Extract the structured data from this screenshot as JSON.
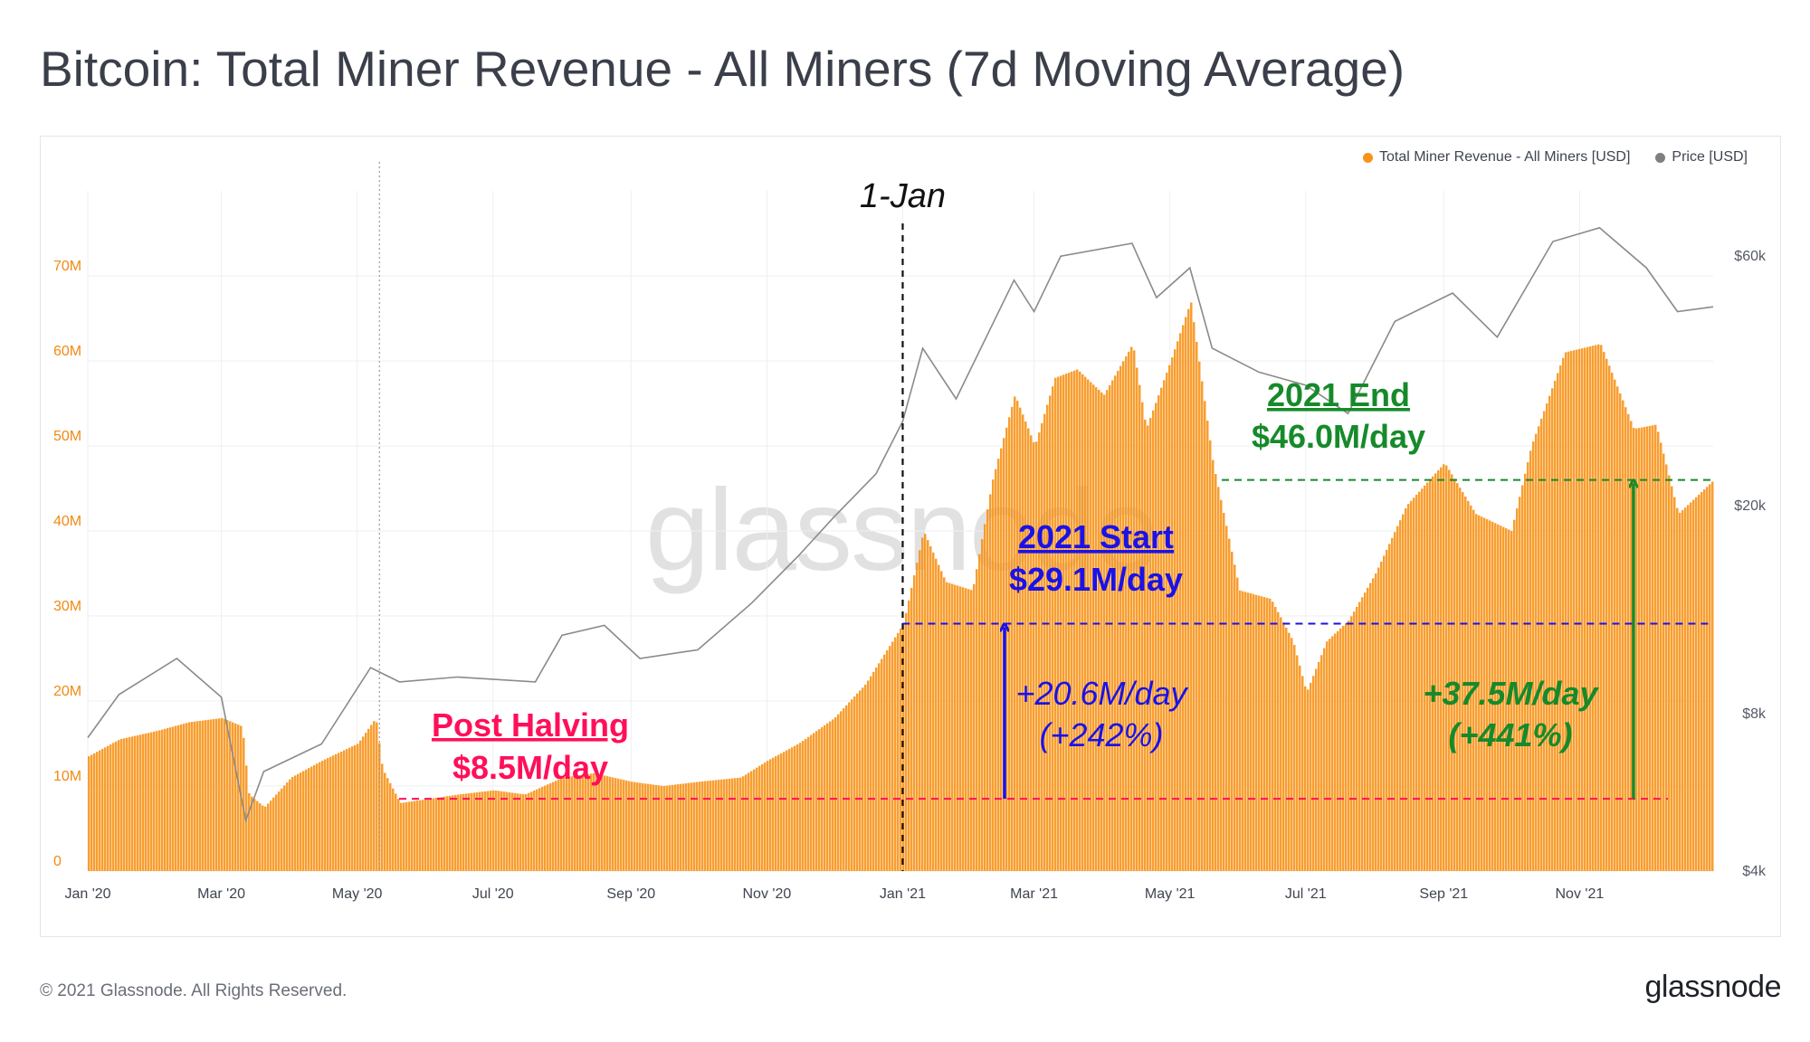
{
  "page": {
    "title": "Bitcoin: Total Miner Revenue - All Miners (7d Moving Average)",
    "copyright": "© 2021 Glassnode. All Rights Reserved.",
    "logo": "glassnode",
    "watermark": "glassnode"
  },
  "legend": {
    "items": [
      {
        "label": "Total Miner Revenue - All Miners [USD]",
        "color": "#f7931a"
      },
      {
        "label": "Price [USD]",
        "color": "#7f7f7f"
      }
    ]
  },
  "chart_data": {
    "type": "area",
    "x_range": [
      "2020-01-01",
      "2021-12-31"
    ],
    "x_ticks": [
      {
        "date": "2020-01-01",
        "label": "Jan '20"
      },
      {
        "date": "2020-03-01",
        "label": "Mar '20"
      },
      {
        "date": "2020-05-01",
        "label": "May '20"
      },
      {
        "date": "2020-07-01",
        "label": "Jul '20"
      },
      {
        "date": "2020-09-01",
        "label": "Sep '20"
      },
      {
        "date": "2020-11-01",
        "label": "Nov '20"
      },
      {
        "date": "2021-01-01",
        "label": "Jan '21"
      },
      {
        "date": "2021-03-01",
        "label": "Mar '21"
      },
      {
        "date": "2021-05-01",
        "label": "May '21"
      },
      {
        "date": "2021-07-01",
        "label": "Jul '21"
      },
      {
        "date": "2021-09-01",
        "label": "Sep '21"
      },
      {
        "date": "2021-11-01",
        "label": "Nov '21"
      }
    ],
    "y_left": {
      "scale": "linear",
      "ylim": [
        0,
        80000000
      ],
      "ticks": [
        {
          "value": 0,
          "label": "0"
        },
        {
          "value": 10000000,
          "label": "10M"
        },
        {
          "value": 20000000,
          "label": "20M"
        },
        {
          "value": 30000000,
          "label": "30M"
        },
        {
          "value": 40000000,
          "label": "40M"
        },
        {
          "value": 50000000,
          "label": "50M"
        },
        {
          "value": 60000000,
          "label": "60M"
        },
        {
          "value": 70000000,
          "label": "70M"
        }
      ]
    },
    "y_right": {
      "scale": "log",
      "ylim": [
        4000,
        80000
      ],
      "ticks": [
        {
          "value": 4000,
          "label": "$4k"
        },
        {
          "value": 8000,
          "label": "$8k"
        },
        {
          "value": 20000,
          "label": "$20k"
        },
        {
          "value": 60000,
          "label": "$60k"
        }
      ]
    },
    "grid": true,
    "legend_position": "top-right",
    "series": [
      {
        "name": "Total Miner Revenue - All Miners [USD]",
        "type": "area",
        "axis": "left",
        "color": "#f7931a",
        "points": [
          [
            "2020-01-01",
            13500000
          ],
          [
            "2020-01-15",
            15500000
          ],
          [
            "2020-02-01",
            16500000
          ],
          [
            "2020-02-15",
            17500000
          ],
          [
            "2020-03-01",
            18000000
          ],
          [
            "2020-03-10",
            17000000
          ],
          [
            "2020-03-13",
            9000000
          ],
          [
            "2020-03-20",
            7500000
          ],
          [
            "2020-04-01",
            11000000
          ],
          [
            "2020-04-15",
            13000000
          ],
          [
            "2020-05-01",
            15000000
          ],
          [
            "2020-05-09",
            18000000
          ],
          [
            "2020-05-12",
            12000000
          ],
          [
            "2020-05-20",
            8000000
          ],
          [
            "2020-06-15",
            9000000
          ],
          [
            "2020-07-01",
            9500000
          ],
          [
            "2020-07-15",
            9000000
          ],
          [
            "2020-08-01",
            11000000
          ],
          [
            "2020-08-15",
            11500000
          ],
          [
            "2020-09-01",
            10500000
          ],
          [
            "2020-09-15",
            10000000
          ],
          [
            "2020-10-01",
            10500000
          ],
          [
            "2020-10-20",
            11000000
          ],
          [
            "2020-11-01",
            13000000
          ],
          [
            "2020-11-15",
            15000000
          ],
          [
            "2020-12-01",
            18000000
          ],
          [
            "2020-12-15",
            22000000
          ],
          [
            "2021-01-01",
            29100000
          ],
          [
            "2021-01-10",
            40000000
          ],
          [
            "2021-01-20",
            34000000
          ],
          [
            "2021-02-01",
            33000000
          ],
          [
            "2021-02-10",
            46000000
          ],
          [
            "2021-02-20",
            56000000
          ],
          [
            "2021-03-01",
            50000000
          ],
          [
            "2021-03-10",
            58000000
          ],
          [
            "2021-03-20",
            59000000
          ],
          [
            "2021-04-01",
            56000000
          ],
          [
            "2021-04-14",
            62000000
          ],
          [
            "2021-04-20",
            52000000
          ],
          [
            "2021-05-01",
            60000000
          ],
          [
            "2021-05-10",
            67000000
          ],
          [
            "2021-05-20",
            48000000
          ],
          [
            "2021-06-01",
            33000000
          ],
          [
            "2021-06-15",
            32000000
          ],
          [
            "2021-06-25",
            27000000
          ],
          [
            "2021-07-01",
            21000000
          ],
          [
            "2021-07-10",
            27000000
          ],
          [
            "2021-07-20",
            29500000
          ],
          [
            "2021-08-01",
            35000000
          ],
          [
            "2021-08-15",
            43000000
          ],
          [
            "2021-09-01",
            48000000
          ],
          [
            "2021-09-15",
            42000000
          ],
          [
            "2021-10-01",
            40000000
          ],
          [
            "2021-10-10",
            50000000
          ],
          [
            "2021-10-25",
            61000000
          ],
          [
            "2021-11-10",
            62000000
          ],
          [
            "2021-11-25",
            52000000
          ],
          [
            "2021-12-05",
            52500000
          ],
          [
            "2021-12-15",
            42000000
          ],
          [
            "2021-12-31",
            46000000
          ]
        ]
      },
      {
        "name": "Price [USD]",
        "type": "line",
        "axis": "right",
        "color": "#8a8a8a",
        "points": [
          [
            "2020-01-01",
            7200
          ],
          [
            "2020-01-15",
            8700
          ],
          [
            "2020-02-10",
            10200
          ],
          [
            "2020-03-01",
            8600
          ],
          [
            "2020-03-12",
            5000
          ],
          [
            "2020-03-20",
            6200
          ],
          [
            "2020-04-15",
            7000
          ],
          [
            "2020-05-07",
            9800
          ],
          [
            "2020-05-20",
            9200
          ],
          [
            "2020-06-15",
            9400
          ],
          [
            "2020-07-20",
            9200
          ],
          [
            "2020-08-01",
            11300
          ],
          [
            "2020-08-20",
            11800
          ],
          [
            "2020-09-05",
            10200
          ],
          [
            "2020-10-01",
            10600
          ],
          [
            "2020-10-25",
            13000
          ],
          [
            "2020-11-15",
            16000
          ],
          [
            "2020-12-01",
            19000
          ],
          [
            "2020-12-20",
            23000
          ],
          [
            "2021-01-01",
            29000
          ],
          [
            "2021-01-10",
            40000
          ],
          [
            "2021-01-25",
            32000
          ],
          [
            "2021-02-20",
            54000
          ],
          [
            "2021-03-01",
            47000
          ],
          [
            "2021-03-13",
            60000
          ],
          [
            "2021-04-14",
            63500
          ],
          [
            "2021-04-25",
            50000
          ],
          [
            "2021-05-10",
            57000
          ],
          [
            "2021-05-20",
            40000
          ],
          [
            "2021-06-10",
            36000
          ],
          [
            "2021-07-01",
            34000
          ],
          [
            "2021-07-20",
            30000
          ],
          [
            "2021-08-10",
            45000
          ],
          [
            "2021-09-05",
            51000
          ],
          [
            "2021-09-25",
            42000
          ],
          [
            "2021-10-20",
            64000
          ],
          [
            "2021-11-10",
            68000
          ],
          [
            "2021-12-01",
            57000
          ],
          [
            "2021-12-15",
            47000
          ],
          [
            "2021-12-31",
            48000
          ]
        ]
      }
    ],
    "annotations": {
      "jan_marker": {
        "date": "2021-01-01",
        "label": "1-Jan"
      },
      "halving_marker": {
        "date": "2020-05-11"
      },
      "post_halving": {
        "title": "Post Halving",
        "value_label": "$8.5M/day",
        "value": 8500000,
        "color": "#ff0f5a"
      },
      "start_2021": {
        "title": "2021 Start",
        "value_label": "$29.1M/day",
        "value": 29100000,
        "color": "#1a12e8"
      },
      "end_2021": {
        "title": "2021 End",
        "value_label": "$46.0M/day",
        "value": 46000000,
        "color": "#168a2a"
      },
      "delta_start": {
        "line1": "+20.6M/day",
        "line2": "(+242%)",
        "color": "#1a12e8"
      },
      "delta_end": {
        "line1": "+37.5M/day",
        "line2": "(+441%)",
        "color": "#168a2a"
      }
    }
  }
}
